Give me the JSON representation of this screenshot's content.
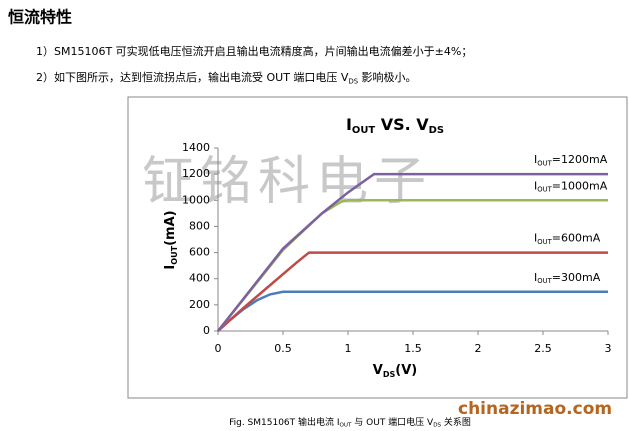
{
  "header": {
    "title": "恒流特性"
  },
  "paragraphs": [
    [
      "1）SM15106T 可实现低电压恒流开启且输出电流精度高，片间输出电流偏差小于±4%；"
    ],
    [
      "2）如下图所示，达到恒流拐点后，输出电流受 OUT 端口电压 V",
      "DS",
      " 影响极小。"
    ]
  ],
  "watermark": "钲铭科电子",
  "site": "chinazimao.com",
  "caption": [
    "Fig. SM15106T 输出电流 I",
    "OUT",
    " 与 OUT 端口电压 V",
    "DS",
    " 关系图"
  ],
  "chart_data": {
    "type": "line",
    "title": [
      "I",
      "OUT",
      " VS. V",
      "DS"
    ],
    "x_label": [
      "V",
      "DS",
      "(V)"
    ],
    "y_label": [
      "I",
      "OUT",
      "(mA)"
    ],
    "xlim": [
      0,
      3
    ],
    "xticks": [
      0,
      0.5,
      1,
      1.5,
      2,
      2.5,
      3
    ],
    "ylim": [
      0,
      1400
    ],
    "yticks": [
      0,
      200,
      400,
      600,
      800,
      1000,
      1200,
      1400
    ],
    "grid": false,
    "series": [
      {
        "label": [
          "I",
          "OUT",
          "=300mA"
        ],
        "color": "#4a7ebb",
        "x": [
          0,
          0.1,
          0.2,
          0.3,
          0.4,
          0.5,
          0.55,
          3
        ],
        "values": [
          0,
          90,
          170,
          235,
          280,
          300,
          300,
          300
        ]
      },
      {
        "label": [
          "I",
          "OUT",
          "=600mA"
        ],
        "color": "#be4b48",
        "x": [
          0,
          0.2,
          0.4,
          0.6,
          0.7,
          0.75,
          3
        ],
        "values": [
          0,
          180,
          350,
          520,
          600,
          600,
          600
        ]
      },
      {
        "label": [
          "I",
          "OUT",
          "=1000mA"
        ],
        "color": "#98b954",
        "x": [
          0,
          0.5,
          0.8,
          0.95,
          1,
          3
        ],
        "values": [
          0,
          620,
          900,
          990,
          1000,
          1000
        ]
      },
      {
        "label": [
          "I",
          "OUT",
          "=1200mA"
        ],
        "color": "#7d60a0",
        "x": [
          0,
          0.5,
          0.8,
          1.0,
          1.2,
          1.25,
          3
        ],
        "values": [
          0,
          630,
          900,
          1060,
          1200,
          1200,
          1200
        ]
      }
    ]
  }
}
